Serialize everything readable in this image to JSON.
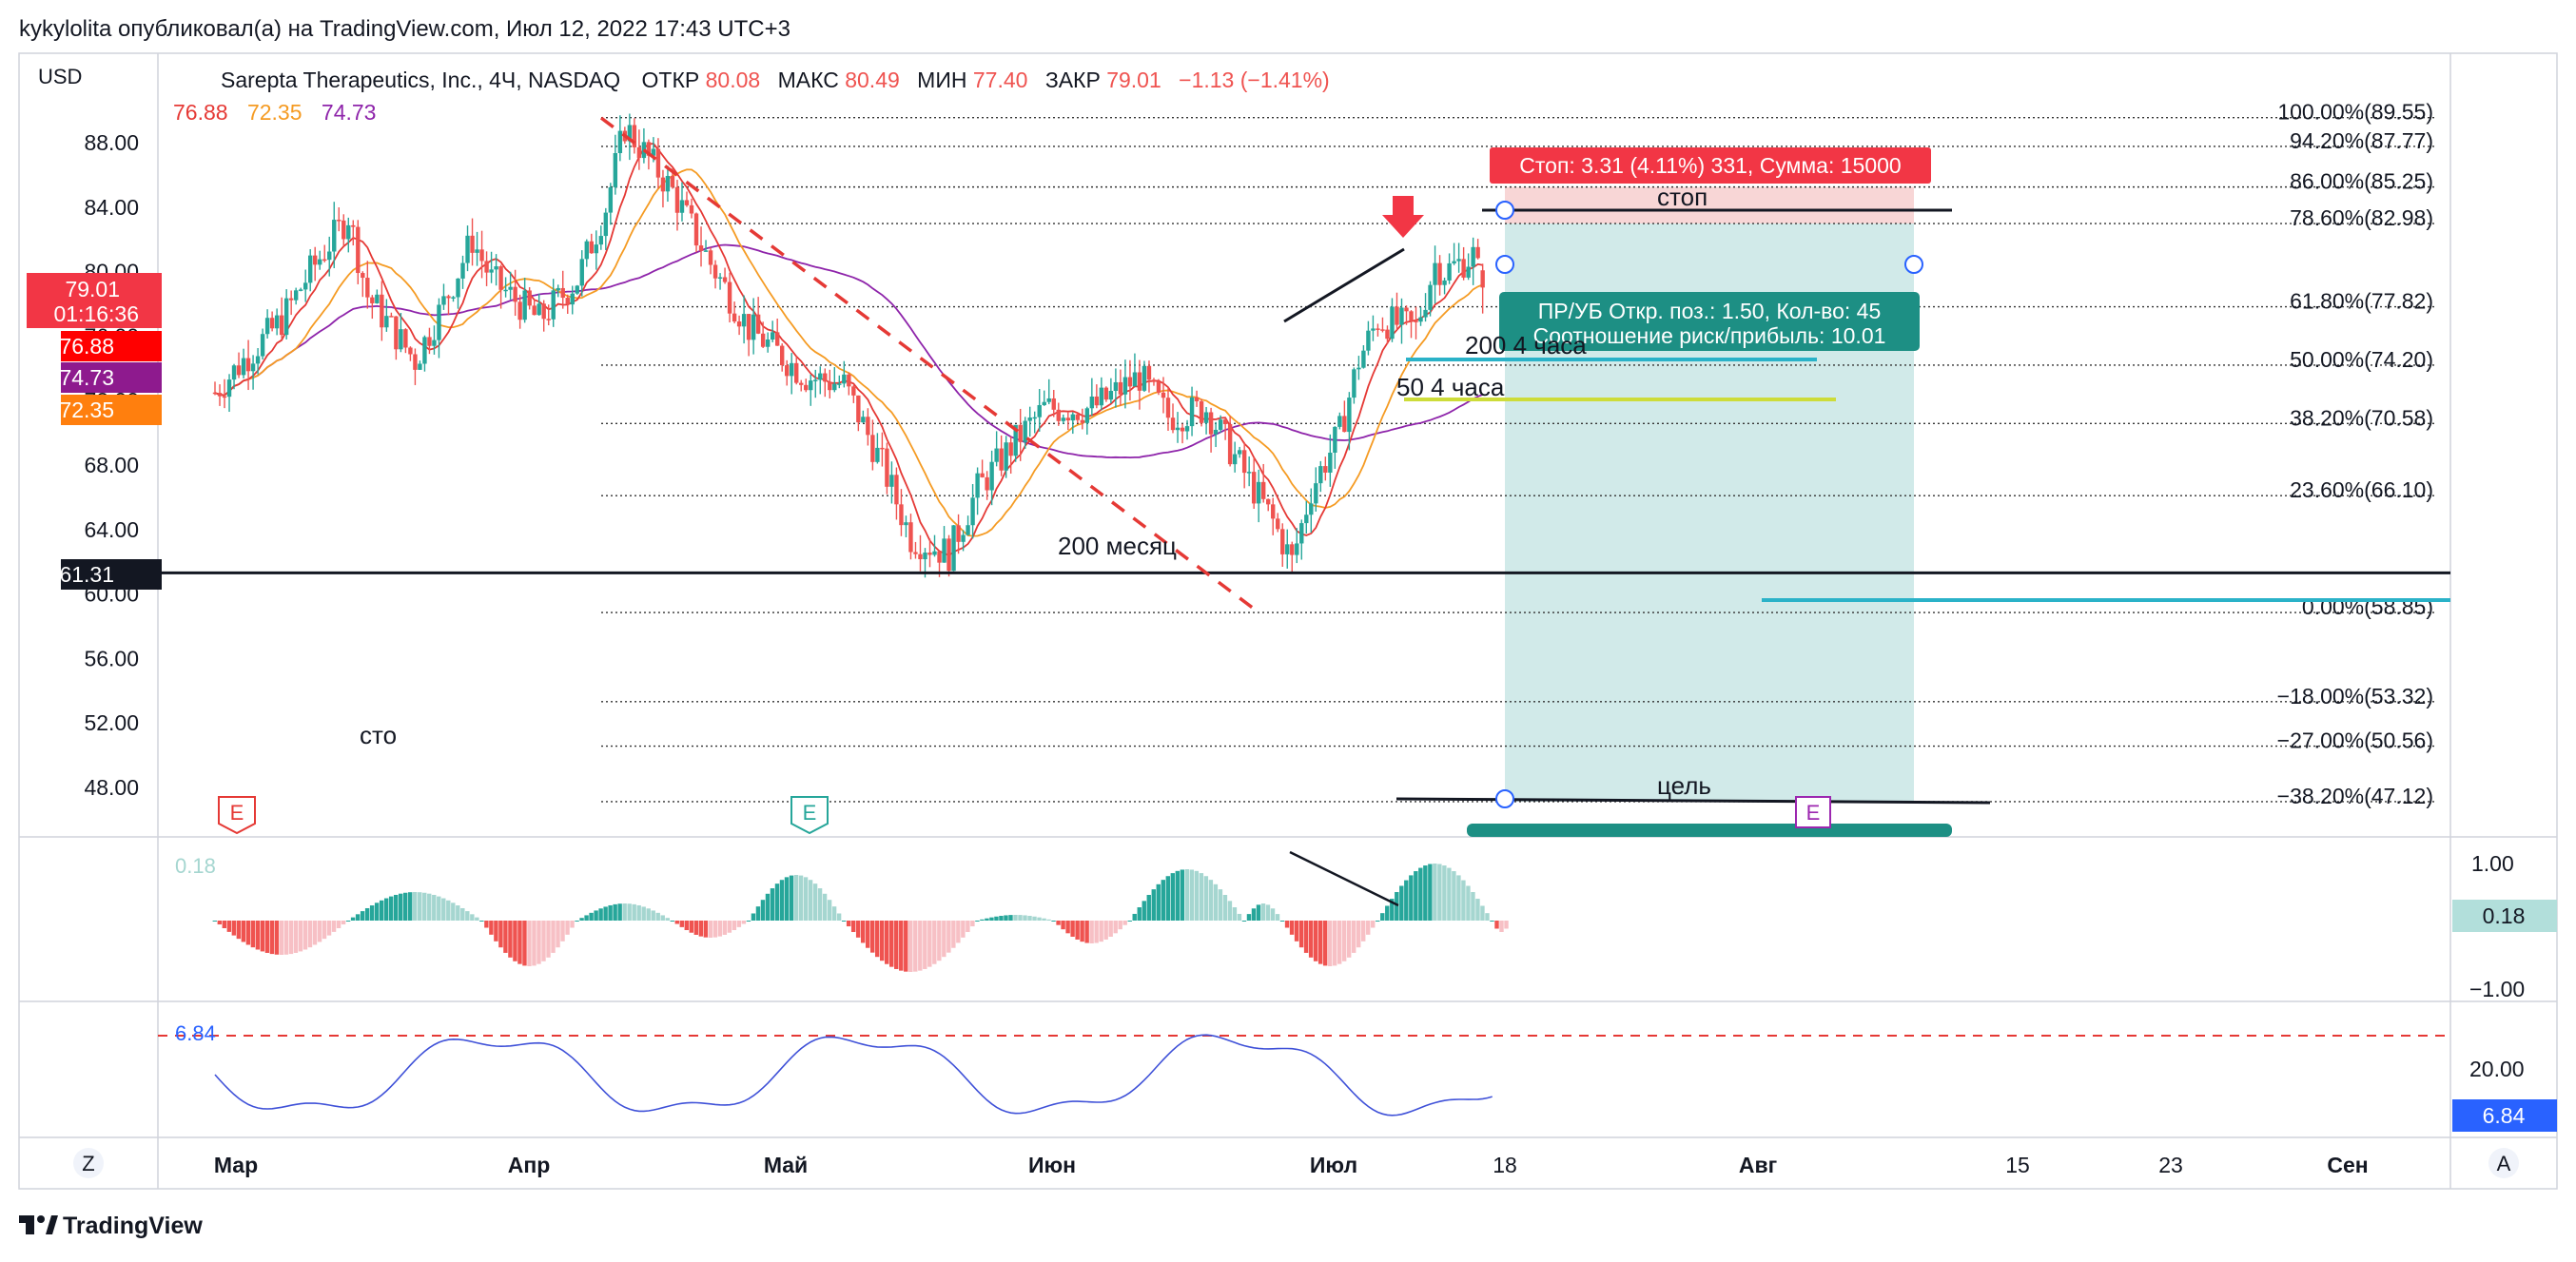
{
  "publish_line": "kykylolita опубликовал(а) на TradingView.com, Июл 12, 2022 17:43 UTC+3",
  "footer_brand": "TradingView",
  "currency": "USD",
  "legend": {
    "title": "Sarepta Therapeutics, Inc., 4Ч, NASDAQ",
    "open_label": "ОТКР",
    "open_value": "80.08",
    "high_label": "МАКС",
    "high_value": "80.49",
    "low_label": "МИН",
    "low_value": "77.40",
    "close_label": "ЗАКР",
    "close_value": "79.01",
    "change": "−1.13 (−1.41%)",
    "ma_values": [
      {
        "value": "76.88",
        "color": "#e53935"
      },
      {
        "value": "72.35",
        "color": "#f59b23"
      },
      {
        "value": "74.73",
        "color": "#8e24aa"
      }
    ]
  },
  "price_badges": {
    "last_price": "79.01",
    "countdown": "01:16:36",
    "ma_fast": "76.88",
    "ma_long": "74.73",
    "ma_mid": "72.35",
    "level": "61.31"
  },
  "fib_levels": [
    {
      "label": "100.00%(89.55)",
      "price": 89.55
    },
    {
      "label": "94.20%(87.77)",
      "price": 87.77
    },
    {
      "label": "86.00%(85.25)",
      "price": 85.25
    },
    {
      "label": "78.60%(82.98)",
      "price": 82.98
    },
    {
      "label": "61.80%(77.82)",
      "price": 77.82
    },
    {
      "label": "50.00%(74.20)",
      "price": 74.2
    },
    {
      "label": "38.20%(70.58)",
      "price": 70.58
    },
    {
      "label": "23.60%(66.10)",
      "price": 66.1
    },
    {
      "label": "0.00%(58.85)",
      "price": 58.85
    },
    {
      "label": "−18.00%(53.32)",
      "price": 53.32
    },
    {
      "label": "−27.00%(50.56)",
      "price": 50.56
    },
    {
      "label": "−38.20%(47.12)",
      "price": 47.12
    }
  ],
  "position": {
    "stop_label": "Стоп: 3.31 (4.11%) 331, Сумма: 15000",
    "info_line1": "ПР/УБ Откр. поз.: 1.50, Кол-во: 45",
    "info_line2": "Соотношение риск/прибыль: 10.01"
  },
  "annotations": {
    "stop": "стоп",
    "target": "цель",
    "ma200_hour": "200 4 часа",
    "ma50_hour": "50 4 часа",
    "ma200_month": "200 месяц",
    "sto": "сто"
  },
  "earnings_marker": "E",
  "oscillator": {
    "value_label": "0.18",
    "badge": "0.18",
    "scale": [
      "1.00",
      "−1.00"
    ]
  },
  "rsi": {
    "value_label": "6.84",
    "badge": "6.84",
    "scale": [
      "20.00"
    ]
  },
  "time_axis": [
    "Мар",
    "Апр",
    "Май",
    "Июн",
    "Июл",
    "18",
    "Авг",
    "15",
    "23",
    "Сен"
  ],
  "corner_buttons": {
    "left": "Z",
    "right": "A"
  },
  "colors": {
    "up": "#26a69a",
    "down": "#ef5350",
    "ma_fast": "#e53935",
    "ma_mid": "#f59b23",
    "ma_long": "#8e24aa",
    "stop_zone": "#f8d6d6",
    "target_zone": "#cfe9e8",
    "tooltip": "#1d8f84",
    "oscillator_value": "#2962ff"
  },
  "chart_data": {
    "type": "candlestick",
    "symbol": "Sarepta Therapeutics, Inc.",
    "timeframe": "4Ч",
    "exchange": "NASDAQ",
    "ylim": [
      46,
      92
    ],
    "y_ticks": [
      88,
      84,
      80,
      76,
      72,
      68,
      64,
      60,
      56,
      52,
      48
    ],
    "x_ticks": [
      "Мар",
      "Апр",
      "Май",
      "Июн",
      "Июл",
      "18",
      "Авг",
      "15",
      "23",
      "Сен"
    ],
    "close_path": [
      [
        "Mar 01",
        72.5
      ],
      [
        "Mar 04",
        74.5
      ],
      [
        "Mar 08",
        77.0
      ],
      [
        "Mar 11",
        80.0
      ],
      [
        "Mar 15",
        83.5
      ],
      [
        "Mar 17",
        78.5
      ],
      [
        "Mar 22",
        74.5
      ],
      [
        "Mar 25",
        78.0
      ],
      [
        "Mar 28",
        82.0
      ],
      [
        "Mar 30",
        79.5
      ],
      [
        "Apr 04",
        77.0
      ],
      [
        "Apr 08",
        79.5
      ],
      [
        "Apr 11",
        84.0
      ],
      [
        "Apr 13",
        89.0
      ],
      [
        "Apr 18",
        85.0
      ],
      [
        "Apr 22",
        80.5
      ],
      [
        "Apr 26",
        76.5
      ],
      [
        "May 02",
        73.5
      ],
      [
        "May 06",
        73.0
      ],
      [
        "May 10",
        68.0
      ],
      [
        "May 13",
        63.5
      ],
      [
        "May 17",
        62.5
      ],
      [
        "May 20",
        66.5
      ],
      [
        "May 24",
        69.5
      ],
      [
        "May 27",
        71.5
      ],
      [
        "Jun 01",
        71.5
      ],
      [
        "Jun 06",
        73.5
      ],
      [
        "Jun 09",
        71.0
      ],
      [
        "Jun 13",
        71.5
      ],
      [
        "Jun 16",
        68.5
      ],
      [
        "Jun 20",
        64.5
      ],
      [
        "Jun 22",
        62.0
      ],
      [
        "Jun 24",
        66.5
      ],
      [
        "Jun 27",
        70.0
      ],
      [
        "Jun 29",
        74.5
      ],
      [
        "Jul 01",
        77.0
      ],
      [
        "Jul 05",
        76.5
      ],
      [
        "Jul 07",
        80.5
      ],
      [
        "Jul 08",
        80.0
      ],
      [
        "Jul 11",
        81.0
      ],
      [
        "Jul 12",
        79.01
      ]
    ],
    "series": [
      {
        "name": "76.88",
        "last": 76.88
      },
      {
        "name": "72.35",
        "last": 72.35
      },
      {
        "name": "74.73",
        "last": 74.73
      }
    ],
    "horizontal_levels": [
      61.31
    ],
    "long_position": {
      "stop": 82.98,
      "stop_upper": 85.25,
      "target": 47.12
    }
  }
}
